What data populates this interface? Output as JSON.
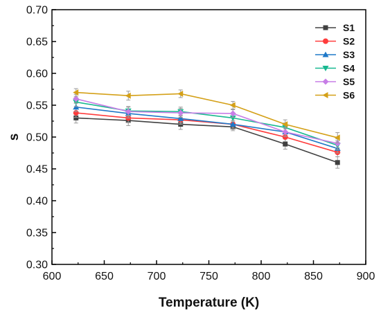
{
  "chart_data": {
    "type": "line",
    "title": "",
    "xlabel": "Temperature (K)",
    "ylabel": "s",
    "xlim": [
      600,
      900
    ],
    "ylim": [
      0.3,
      0.7
    ],
    "xticks": [
      600,
      650,
      700,
      750,
      800,
      850,
      900
    ],
    "yticks": [
      "0.30",
      "0.35",
      "0.40",
      "0.45",
      "0.50",
      "0.55",
      "0.60",
      "0.65",
      "0.70"
    ],
    "x": [
      623,
      673,
      723,
      773,
      823,
      873
    ],
    "legend_position": "top-right",
    "grid": false,
    "error_bars": true,
    "series": [
      {
        "name": "S1",
        "color": "#404040",
        "marker": "square",
        "values": [
          0.53,
          0.526,
          0.52,
          0.516,
          0.489,
          0.46
        ],
        "errors": [
          0.008,
          0.008,
          0.008,
          0.006,
          0.008,
          0.009
        ]
      },
      {
        "name": "S2",
        "color": "#ff3b3b",
        "marker": "circle",
        "values": [
          0.538,
          0.53,
          0.527,
          0.52,
          0.5,
          0.476
        ],
        "errors": [
          0.007,
          0.007,
          0.007,
          0.006,
          0.007,
          0.007
        ]
      },
      {
        "name": "S3",
        "color": "#1f78c8",
        "marker": "triangle-up",
        "values": [
          0.547,
          0.537,
          0.529,
          0.52,
          0.508,
          0.482
        ],
        "errors": [
          0.007,
          0.007,
          0.007,
          0.006,
          0.007,
          0.007
        ]
      },
      {
        "name": "S4",
        "color": "#17b890",
        "marker": "triangle-down",
        "values": [
          0.555,
          0.541,
          0.54,
          0.53,
          0.515,
          0.487
        ],
        "errors": [
          0.007,
          0.007,
          0.007,
          0.006,
          0.007,
          0.007
        ]
      },
      {
        "name": "S5",
        "color": "#c77ee6",
        "marker": "diamond",
        "values": [
          0.56,
          0.54,
          0.538,
          0.537,
          0.508,
          0.49
        ],
        "errors": [
          0.007,
          0.007,
          0.007,
          0.006,
          0.007,
          0.007
        ]
      },
      {
        "name": "S6",
        "color": "#d4a017",
        "marker": "triangle-left",
        "values": [
          0.57,
          0.565,
          0.568,
          0.55,
          0.52,
          0.499
        ],
        "errors": [
          0.006,
          0.007,
          0.006,
          0.006,
          0.007,
          0.008
        ]
      }
    ]
  }
}
